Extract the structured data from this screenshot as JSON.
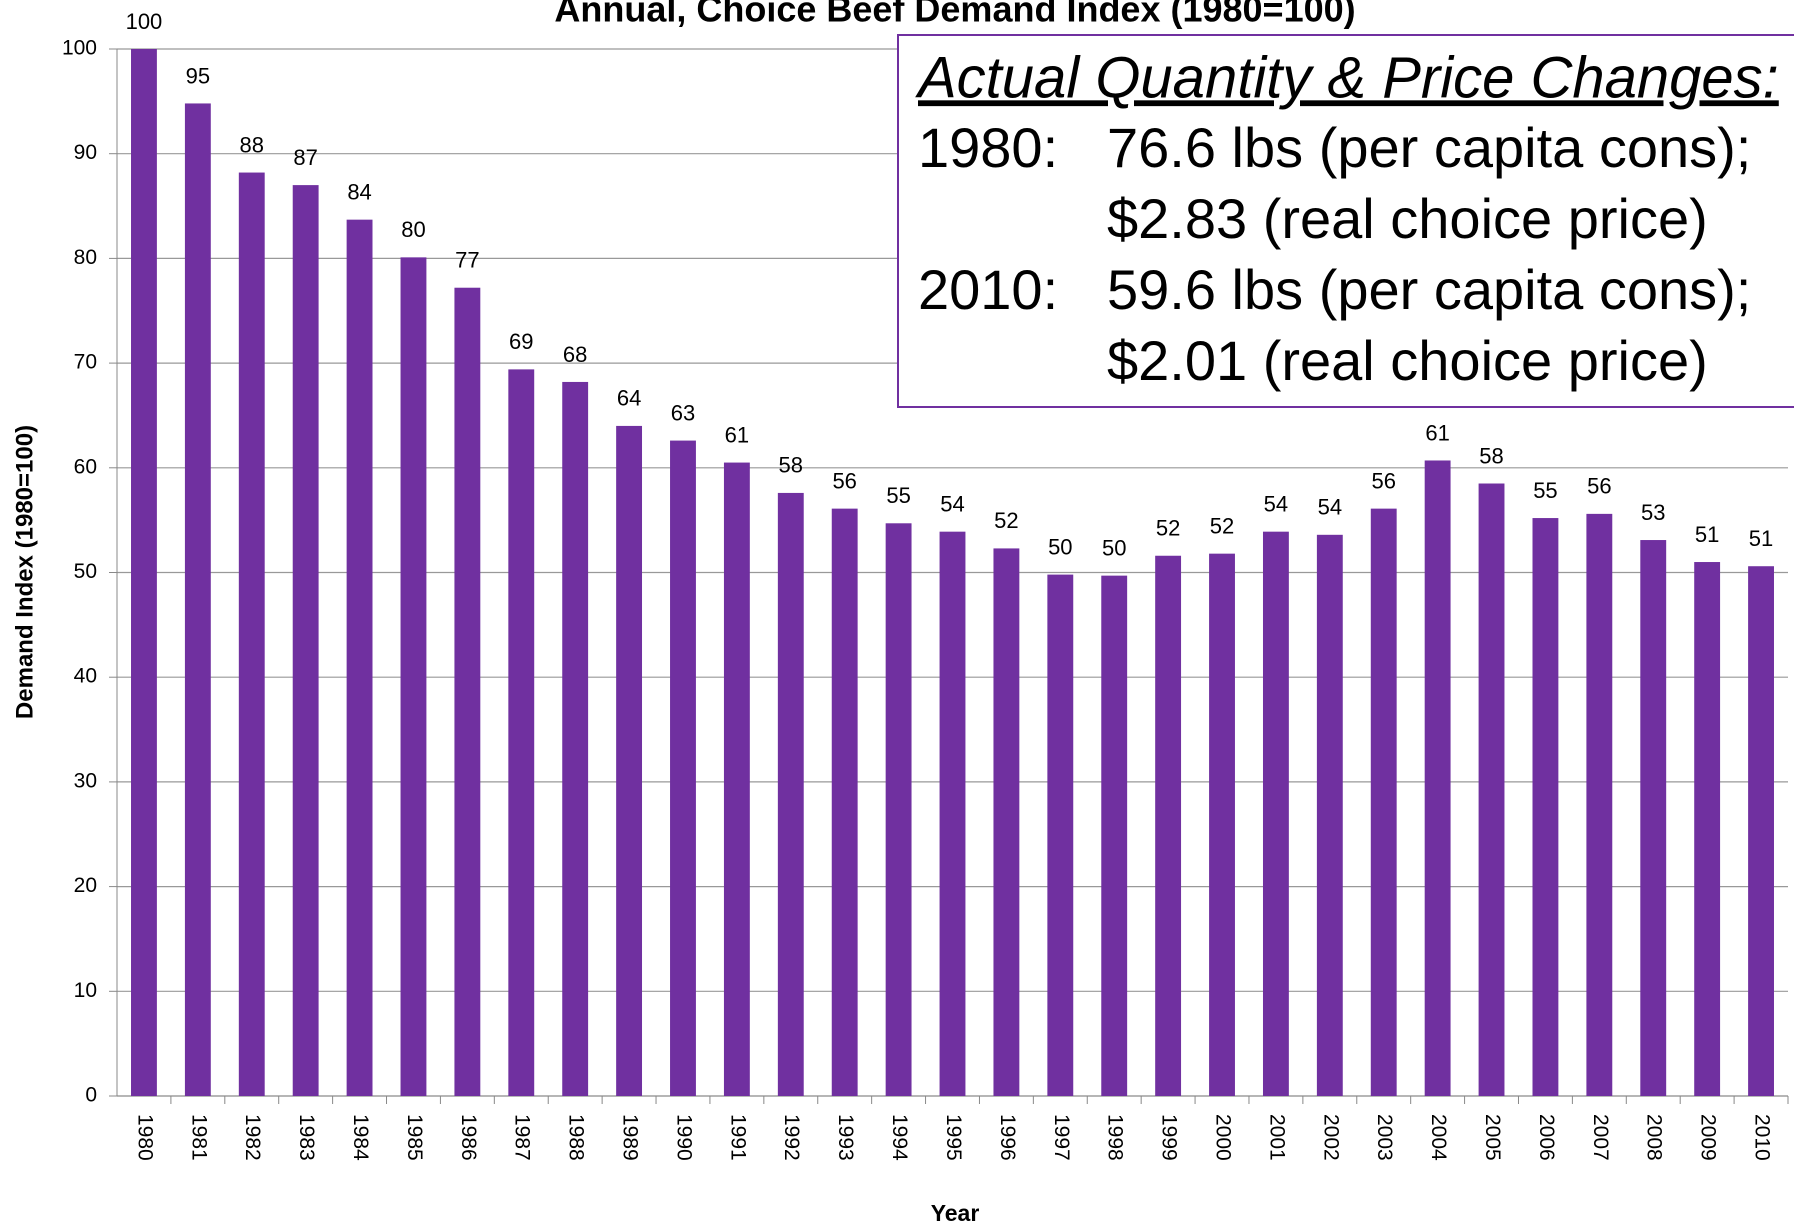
{
  "chart_data": {
    "type": "bar",
    "title": "Annual, Choice Beef Demand Index (1980=100)",
    "x_label": "Year",
    "y_label": "Demand Index (1980=100)",
    "categories": [
      "1980",
      "1981",
      "1982",
      "1983",
      "1984",
      "1985",
      "1986",
      "1987",
      "1988",
      "1989",
      "1990",
      "1991",
      "1992",
      "1993",
      "1994",
      "1995",
      "1996",
      "1997",
      "1998",
      "1999",
      "2000",
      "2001",
      "2002",
      "2003",
      "2004",
      "2005",
      "2006",
      "2007",
      "2008",
      "2009",
      "2010"
    ],
    "values": [
      100,
      94.8,
      88.2,
      87.0,
      83.7,
      80.1,
      77.2,
      69.4,
      68.2,
      64.0,
      62.6,
      60.5,
      57.6,
      56.1,
      54.7,
      53.9,
      52.3,
      49.8,
      49.7,
      51.6,
      51.8,
      53.9,
      53.6,
      56.1,
      60.7,
      58.5,
      55.2,
      55.6,
      53.1,
      51.0,
      50.6
    ],
    "value_labels": [
      "100",
      "95",
      "88",
      "87",
      "84",
      "80",
      "77",
      "69",
      "68",
      "64",
      "63",
      "61",
      "58",
      "56",
      "55",
      "54",
      "52",
      "50",
      "50",
      "52",
      "52",
      "54",
      "54",
      "56",
      "61",
      "58",
      "55",
      "56",
      "53",
      "51",
      "51"
    ],
    "color": "#7030a0",
    "ylim": [
      0,
      100
    ],
    "yticks": [
      0,
      10,
      20,
      30,
      40,
      50,
      60,
      70,
      80,
      90,
      100
    ],
    "grid": true,
    "annotation": {
      "heading": "Actual Quantity & Price Changes:",
      "entries": [
        {
          "label": "1980:",
          "lines": [
            "76.6 lbs (per capita cons);",
            "$2.83 (real choice price)"
          ]
        },
        {
          "label": "2010:",
          "lines": [
            "59.6 lbs (per capita cons);",
            "$2.01 (real choice price)"
          ]
        }
      ]
    }
  }
}
